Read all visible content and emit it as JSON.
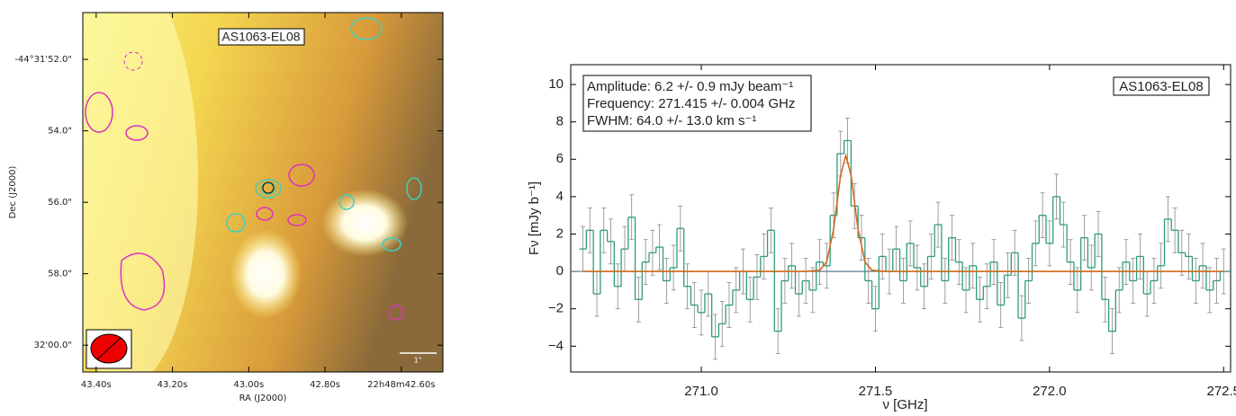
{
  "chart_data": [
    {
      "type": "image",
      "label": "AS1063-EL08",
      "xlabel": "RA (J2000)",
      "ylabel": "Dec (J2000)",
      "xlim": [
        43.435,
        42.491
      ],
      "xticks": [
        {
          "value": 43.4,
          "label": "43.40s"
        },
        {
          "value": 43.2,
          "label": "43.20s"
        },
        {
          "value": 43.0,
          "label": "43.00s"
        },
        {
          "value": 42.8,
          "label": "42.80s"
        },
        {
          "value": 42.6,
          "label": "22h48m42.60s"
        }
      ],
      "ylim": [
        50.69,
        60.75
      ],
      "yticks": [
        {
          "value": 52,
          "label": "-44°31'52.0\""
        },
        {
          "value": 54,
          "label": "54.0\""
        },
        {
          "value": 56,
          "label": "56.0\""
        },
        {
          "value": 58,
          "label": "58.0\""
        },
        {
          "value": 60,
          "label": "32'00.0\""
        }
      ],
      "scale_bar_label": "1\""
    },
    {
      "type": "step",
      "label": "AS1063-EL08",
      "annotation": [
        "Amplitude: 6.2 +/- 0.9 mJy beam⁻¹",
        "Frequency: 271.415 +/- 0.004 GHz",
        "FWHM: 64.0 +/- 13.0 km s⁻¹"
      ],
      "xlabel": "ν [GHz]",
      "ylabel": "Fν [mJy b⁻¹]",
      "xlim": [
        270.625,
        272.52
      ],
      "ylim": [
        -5.38,
        11.06
      ],
      "xticks": [
        {
          "value": 271,
          "label": "271.0"
        },
        {
          "value": 271.5,
          "label": "271.5"
        },
        {
          "value": 272,
          "label": "272.0"
        },
        {
          "value": 272.5,
          "label": "272.5"
        }
      ],
      "yticks": [
        {
          "value": -4,
          "label": "−4"
        },
        {
          "value": -2,
          "label": "−2"
        },
        0,
        2,
        4,
        6,
        8,
        10
      ],
      "x": [
        270.66,
        270.68,
        270.7,
        270.72,
        270.74,
        270.76,
        270.78,
        270.8,
        270.82,
        270.84,
        270.86,
        270.88,
        270.9,
        270.92,
        270.94,
        270.96,
        270.98,
        271.0,
        271.02,
        271.04,
        271.06,
        271.08,
        271.1,
        271.12,
        271.14,
        271.16,
        271.18,
        271.2,
        271.22,
        271.24,
        271.26,
        271.28,
        271.3,
        271.32,
        271.34,
        271.36,
        271.38,
        271.4,
        271.42,
        271.44,
        271.46,
        271.48,
        271.5,
        271.52,
        271.54,
        271.56,
        271.58,
        271.6,
        271.62,
        271.64,
        271.66,
        271.68,
        271.7,
        271.72,
        271.74,
        271.76,
        271.78,
        271.8,
        271.82,
        271.84,
        271.86,
        271.88,
        271.9,
        271.92,
        271.94,
        271.96,
        271.98,
        272.0,
        272.02,
        272.04,
        272.06,
        272.08,
        272.1,
        272.12,
        272.14,
        272.16,
        272.18,
        272.2,
        272.22,
        272.24,
        272.26,
        272.28,
        272.3,
        272.32,
        272.34,
        272.36,
        272.38,
        272.4,
        272.42,
        272.44,
        272.46,
        272.48,
        272.5
      ],
      "values": [
        1.2,
        2.2,
        -1.2,
        2.2,
        1.6,
        -0.8,
        1.2,
        2.9,
        -1.5,
        0.5,
        1.0,
        1.3,
        -0.5,
        0.2,
        2.3,
        -0.8,
        -1.8,
        -2.2,
        -1.2,
        -3.5,
        -2.8,
        -1.8,
        -1.0,
        0.0,
        -1.5,
        -0.3,
        0.8,
        2.2,
        -3.2,
        -0.5,
        0.3,
        -1.2,
        -0.5,
        -1.0,
        0.5,
        0.3,
        3.0,
        6.3,
        7.0,
        3.5,
        1.8,
        -0.5,
        -2.0,
        0.8,
        0.0,
        1.2,
        -0.5,
        1.5,
        0.2,
        -0.8,
        0.8,
        2.5,
        -0.5,
        1.8,
        0.5,
        -1.0,
        0.3,
        -1.5,
        -0.8,
        0.5,
        -1.8,
        -0.2,
        1.0,
        -2.5,
        -0.5,
        1.5,
        3.0,
        1.5,
        4.0,
        2.5,
        0.5,
        -1.0,
        1.8,
        0.2,
        2.0,
        -1.5,
        -3.2,
        -1.0,
        0.5,
        -0.5,
        0.8,
        -1.2,
        -0.5,
        0.3,
        2.8,
        2.2,
        1.0,
        0.8,
        -0.5,
        0.3,
        -1.0,
        -0.5,
        0.0
      ],
      "errors": [
        1.2,
        1.2,
        1.2,
        1.2,
        1.2,
        1.2,
        1.2,
        1.2,
        1.2,
        1.2,
        1.2,
        1.2,
        1.2,
        1.2,
        1.2,
        1.2,
        1.2,
        1.2,
        1.2,
        1.2,
        1.2,
        1.2,
        1.2,
        1.2,
        1.2,
        1.2,
        1.2,
        1.2,
        1.2,
        1.2,
        1.2,
        1.2,
        1.2,
        1.2,
        1.2,
        1.2,
        1.2,
        1.2,
        1.2,
        1.2,
        1.2,
        1.2,
        1.2,
        1.2,
        1.2,
        1.2,
        1.2,
        1.2,
        1.2,
        1.2,
        1.2,
        1.2,
        1.2,
        1.2,
        1.2,
        1.2,
        1.2,
        1.2,
        1.2,
        1.2,
        1.2,
        1.2,
        1.2,
        1.2,
        1.2,
        1.2,
        1.2,
        1.2,
        1.2,
        1.2,
        1.2,
        1.2,
        1.2,
        1.2,
        1.2,
        1.2,
        1.2,
        1.2,
        1.2,
        1.2,
        1.2,
        1.2,
        1.2,
        1.2,
        1.2,
        1.2,
        1.2,
        1.2,
        1.2,
        1.2,
        1.2,
        1.2,
        1.2
      ],
      "color": "#2e9c78",
      "fit": {
        "x": [
          270.66,
          271.3,
          271.34,
          271.36,
          271.38,
          271.4,
          271.415,
          271.43,
          271.45,
          271.47,
          271.49,
          271.53,
          272.5
        ],
        "values": [
          0,
          0,
          0.06,
          0.51,
          2.26,
          5.15,
          6.2,
          5.15,
          2.26,
          0.51,
          0.06,
          0,
          0
        ],
        "color": "#d2691e"
      },
      "zero_line_color": "#4a6e8a"
    }
  ]
}
